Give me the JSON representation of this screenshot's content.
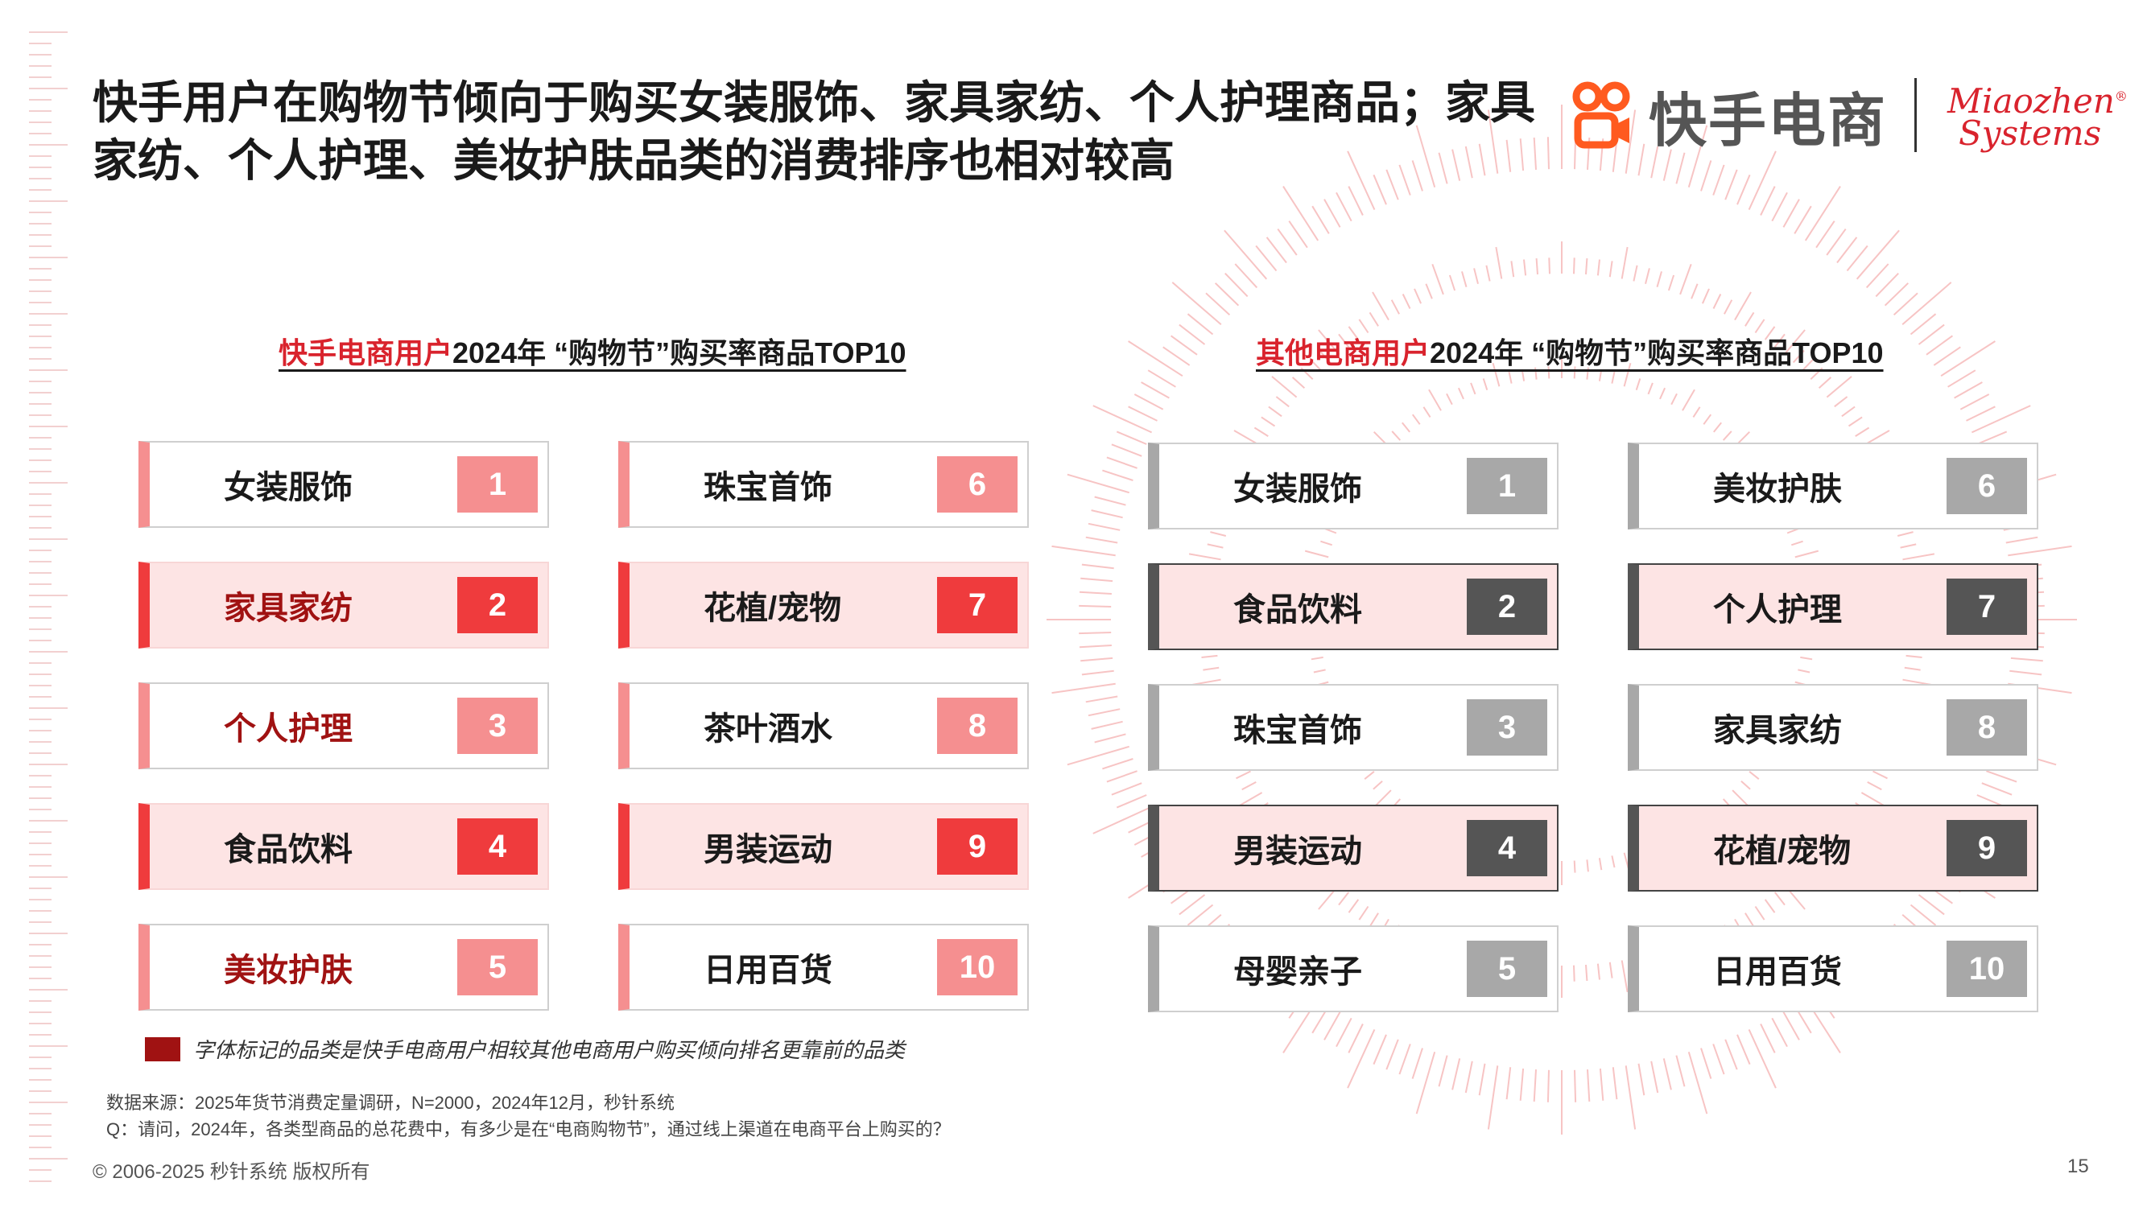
{
  "title": {
    "line1": "快手用户在购物节倾向于购买女装服饰、家具家纺、个人护理商品；家具",
    "line2": "家纺、个人护理、美妆护肤品类的消费排序也相对较高"
  },
  "logo": {
    "brand_text": "快手电商",
    "partner_line1": "Miaozhen",
    "partner_line2": "Systems",
    "partner_mark": "®"
  },
  "colors": {
    "accent_red": "#ef3b3d",
    "light_red": "#f58f90",
    "dark_gray": "#555555",
    "light_gray": "#a8a8a8",
    "dark_red_text": "#a01212",
    "highlight_bg": "#fde4e4"
  },
  "panels": [
    {
      "title_highlight": "快手电商用户",
      "title_rest": "2024年 “购物节”购买率商品TOP10",
      "items": [
        {
          "rank": "1",
          "name": "女装服饰"
        },
        {
          "rank": "2",
          "name": "家具家纺"
        },
        {
          "rank": "3",
          "name": "个人护理"
        },
        {
          "rank": "4",
          "name": "食品饮料"
        },
        {
          "rank": "5",
          "name": "美妆护肤"
        },
        {
          "rank": "6",
          "name": "珠宝首饰"
        },
        {
          "rank": "7",
          "name": "花植/宠物"
        },
        {
          "rank": "8",
          "name": "茶叶酒水"
        },
        {
          "rank": "9",
          "name": "男装运动"
        },
        {
          "rank": "10",
          "name": "日用百货"
        }
      ]
    },
    {
      "title_highlight": "其他电商用户",
      "title_rest": "2024年 “购物节”购买率商品TOP10",
      "items": [
        {
          "rank": "1",
          "name": "女装服饰"
        },
        {
          "rank": "2",
          "name": "食品饮料"
        },
        {
          "rank": "3",
          "name": "珠宝首饰"
        },
        {
          "rank": "4",
          "name": "男装运动"
        },
        {
          "rank": "5",
          "name": "母婴亲子"
        },
        {
          "rank": "6",
          "name": "美妆护肤"
        },
        {
          "rank": "7",
          "name": "个人护理"
        },
        {
          "rank": "8",
          "name": "家具家纺"
        },
        {
          "rank": "9",
          "name": "花植/宠物"
        },
        {
          "rank": "10",
          "name": "日用百货"
        }
      ]
    }
  ],
  "legend": {
    "text": "字体标记的品类是快手电商用户相较其他电商用户购买倾向排名更靠前的品类"
  },
  "notes": {
    "source": "数据来源：2025年货节消费定量调研，N=2000，2024年12月，秒针系统",
    "question": "Q：请问，2024年，各类型商品的总花费中，有多少是在“电商购物节”，通过线上渠道在电商平台上购买的？"
  },
  "footer": {
    "copyright": "© 2006-2025 秒针系统 版权所有",
    "page_number": "15"
  }
}
